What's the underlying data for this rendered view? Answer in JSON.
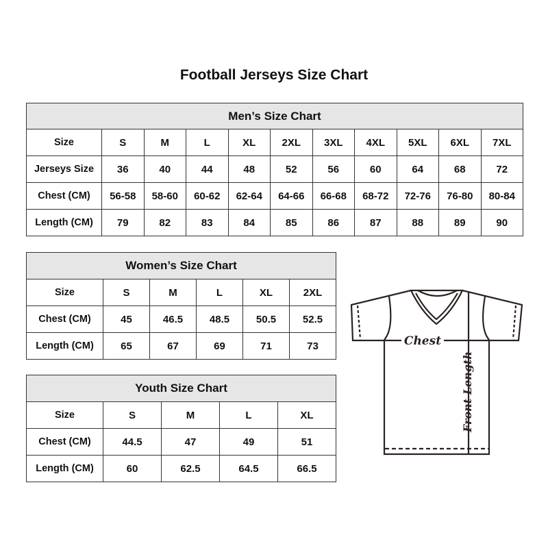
{
  "title": "Football Jerseys Size Chart",
  "men": {
    "heading": "Men’s Size Chart",
    "rows": [
      [
        "Size",
        "S",
        "M",
        "L",
        "XL",
        "2XL",
        "3XL",
        "4XL",
        "5XL",
        "6XL",
        "7XL"
      ],
      [
        "Jerseys Size",
        "36",
        "40",
        "44",
        "48",
        "52",
        "56",
        "60",
        "64",
        "68",
        "72"
      ],
      [
        "Chest (CM)",
        "56-58",
        "58-60",
        "60-62",
        "62-64",
        "64-66",
        "66-68",
        "68-72",
        "72-76",
        "76-80",
        "80-84"
      ],
      [
        "Length (CM)",
        "79",
        "82",
        "83",
        "84",
        "85",
        "86",
        "87",
        "88",
        "89",
        "90"
      ]
    ]
  },
  "women": {
    "heading": "Women’s Size Chart",
    "rows": [
      [
        "Size",
        "S",
        "M",
        "L",
        "XL",
        "2XL"
      ],
      [
        "Chest (CM)",
        "45",
        "46.5",
        "48.5",
        "50.5",
        "52.5"
      ],
      [
        "Length (CM)",
        "65",
        "67",
        "69",
        "71",
        "73"
      ]
    ]
  },
  "youth": {
    "heading": "Youth Size Chart",
    "rows": [
      [
        "Size",
        "S",
        "M",
        "L",
        "XL"
      ],
      [
        "Chest (CM)",
        "44.5",
        "47",
        "49",
        "51"
      ],
      [
        "Length (CM)",
        "60",
        "62.5",
        "64.5",
        "66.5"
      ]
    ]
  },
  "diagram": {
    "chest_label": "Chest",
    "length_label": "Front Length",
    "icon": "jersey-outline-icon"
  }
}
